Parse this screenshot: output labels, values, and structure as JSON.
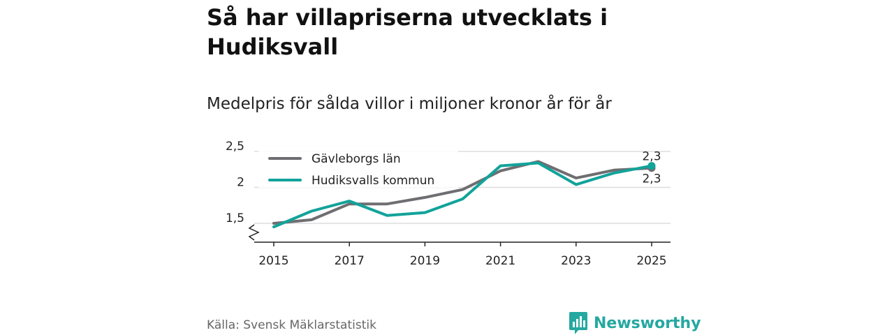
{
  "header": {
    "title": "Så har villapriserna utvecklats i Hudiksvall",
    "subtitle": "Medelpris för sålda villor i miljoner kronor år för år"
  },
  "footer": {
    "source": "Källa: Svensk Mäklarstatistik",
    "brand": "Newsworthy",
    "brand_color": "#24a8a0"
  },
  "chart_data": {
    "type": "line",
    "title": "Så har villapriserna utvecklats i Hudiksvall",
    "subtitle": "Medelpris för sålda villor i miljoner kronor år för år",
    "xlabel": "",
    "ylabel": "",
    "x": [
      2015,
      2016,
      2017,
      2018,
      2019,
      2020,
      2021,
      2022,
      2023,
      2024,
      2025
    ],
    "xticks": [
      2015,
      2017,
      2019,
      2021,
      2023,
      2025
    ],
    "yticks": [
      1.5,
      2,
      2.5
    ],
    "ytick_labels": [
      "1,5",
      "2",
      "2,5"
    ],
    "ylim": [
      1.3,
      2.5
    ],
    "axis_break": true,
    "grid": true,
    "legend_position": "top-left",
    "series": [
      {
        "name": "Gävleborgs län",
        "color": "#6e6e72",
        "values": [
          1.5,
          1.55,
          1.77,
          1.77,
          1.86,
          1.97,
          2.23,
          2.36,
          2.13,
          2.24,
          2.27
        ],
        "end_label": "2,3"
      },
      {
        "name": "Hudiksvalls kommun",
        "color": "#12a39a",
        "values": [
          1.45,
          1.67,
          1.81,
          1.61,
          1.65,
          1.84,
          2.3,
          2.34,
          2.04,
          2.2,
          2.3
        ],
        "end_label": "2,3"
      }
    ]
  }
}
